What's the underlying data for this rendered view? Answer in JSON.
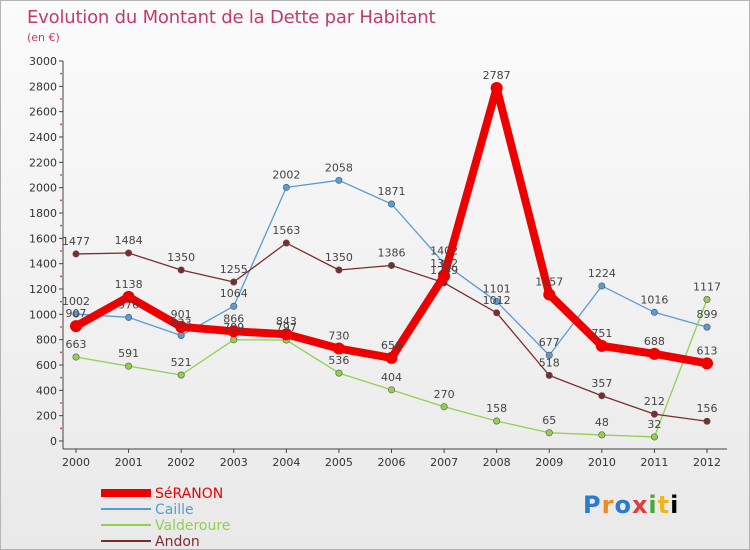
{
  "title": "Evolution du Montant de la Dette par Habitant",
  "subtitle": "(en €)",
  "logo": "Proxiti",
  "chart_data": {
    "type": "line",
    "title": "Evolution du Montant de la Dette par Habitant",
    "ylabel": "(en €)",
    "xlabel": "",
    "ylim": [
      0,
      3000
    ],
    "yticks": [
      0,
      200,
      400,
      600,
      800,
      1000,
      1200,
      1400,
      1600,
      1800,
      2000,
      2200,
      2400,
      2600,
      2800,
      3000
    ],
    "categories": [
      "2000",
      "2001",
      "2002",
      "2003",
      "2004",
      "2005",
      "2006",
      "2007",
      "2008",
      "2009",
      "2010",
      "2011",
      "2012"
    ],
    "grid": false,
    "legend_position": "bottom-left",
    "series": [
      {
        "name": "SéRANON",
        "color": "#ee0000",
        "values": [
          907,
          1138,
          901,
          866,
          843,
          730,
          656,
          1302,
          2787,
          1157,
          751,
          688,
          613
        ]
      },
      {
        "name": "Caille",
        "color": "#5b9bd5",
        "values": [
          1002,
          976,
          833,
          1064,
          2002,
          2058,
          1871,
          1402,
          1101,
          677,
          1224,
          1016,
          899
        ]
      },
      {
        "name": "Valderoure",
        "color": "#92d050",
        "values": [
          663,
          591,
          521,
          799,
          797,
          536,
          404,
          270,
          158,
          65,
          48,
          32,
          1117
        ]
      },
      {
        "name": "Andon",
        "color": "#7b2d2d",
        "values": [
          1477,
          1484,
          1350,
          1255,
          1563,
          1350,
          1386,
          1249,
          1012,
          518,
          357,
          212,
          156
        ]
      }
    ]
  }
}
